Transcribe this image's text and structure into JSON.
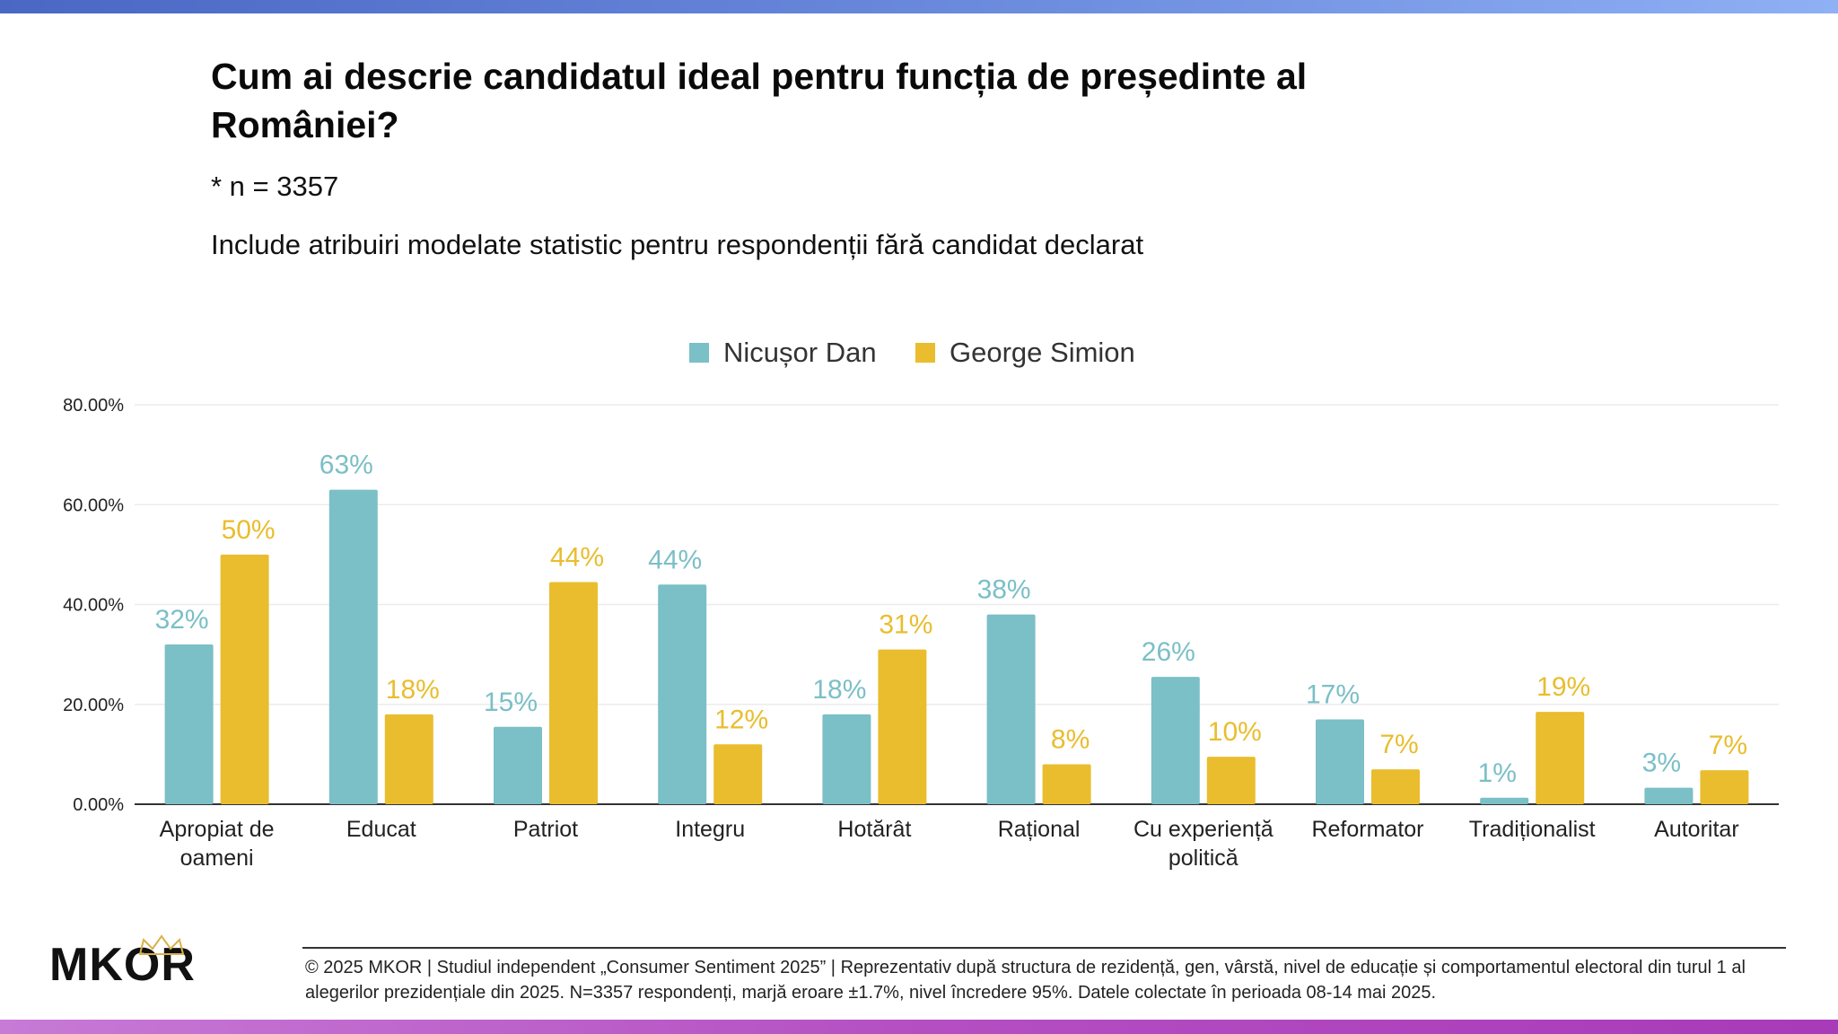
{
  "header": {
    "title": "Cum ai descrie candidatul ideal pentru funcția de președinte al României?",
    "subtitle": "* n = 3357",
    "note": "Include atribuiri modelate statistic pentru respondenții fără candidat declarat"
  },
  "footer": {
    "logo_text": "MKOR",
    "text": "© 2025 MKOR | Studiul independent „Consumer Sentiment 2025” | Reprezentativ după structura de rezidență, gen, vârstă, nivel de educație și comportamentul electoral din turul 1 al alegerilor prezidențiale din 2025. N=3357 respondenți, marjă eroare ±1.7%, nivel încredere 95%. Datele colectate în perioada 08-14 mai 2025."
  },
  "chart_data": {
    "type": "bar",
    "title": "Cum ai descrie candidatul ideal pentru funcția de președinte al României?",
    "xlabel": "",
    "ylabel": "",
    "ylim": [
      0,
      80
    ],
    "yticks": [
      "0.00%",
      "20.00%",
      "40.00%",
      "60.00%",
      "80.00%"
    ],
    "ytick_values": [
      0,
      20,
      40,
      60,
      80
    ],
    "grid": true,
    "legend_position": "top-center",
    "categories": [
      [
        "Apropiat de",
        "oameni"
      ],
      [
        "Educat"
      ],
      [
        "Patriot"
      ],
      [
        "Integru"
      ],
      [
        "Hotărât"
      ],
      [
        "Rațional"
      ],
      [
        "Cu experiență",
        "politică"
      ],
      [
        "Reformator"
      ],
      [
        "Tradiționalist"
      ],
      [
        "Autoritar"
      ]
    ],
    "series": [
      {
        "name": "Nicușor Dan",
        "color": "#7bbfc7",
        "values": [
          32,
          63,
          15.5,
          44,
          18,
          38,
          25.5,
          17,
          1.3,
          3.3
        ],
        "labels": [
          "32%",
          "63%",
          "15%",
          "44%",
          "18%",
          "38%",
          "26%",
          "17%",
          "1%",
          "3%"
        ]
      },
      {
        "name": "George Simion",
        "color": "#e9bd2e",
        "values": [
          50,
          18,
          44.5,
          12,
          31,
          8,
          9.5,
          7,
          18.5,
          6.8
        ],
        "labels": [
          "50%",
          "18%",
          "44%",
          "12%",
          "31%",
          "8%",
          "10%",
          "7%",
          "19%",
          "7%"
        ]
      }
    ]
  }
}
